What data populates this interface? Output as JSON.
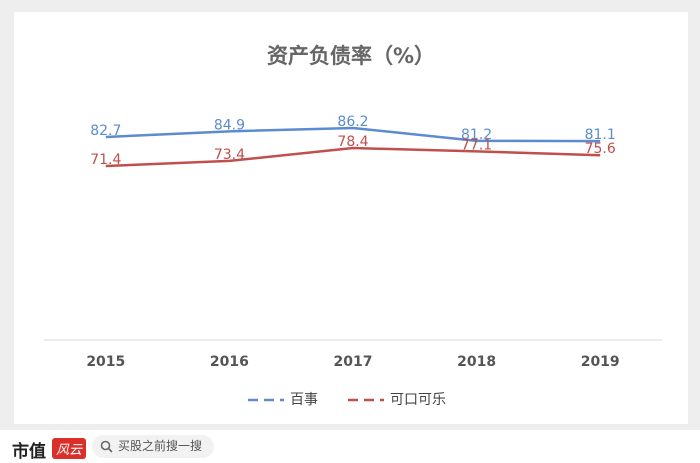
{
  "chart_data": {
    "type": "line",
    "title": "资产负债率（%）",
    "categories": [
      "2015",
      "2016",
      "2017",
      "2018",
      "2019"
    ],
    "series": [
      {
        "name": "百事",
        "color": "#5b8bd0",
        "values": [
          82.7,
          84.9,
          86.2,
          81.2,
          81.1
        ]
      },
      {
        "name": "可口可乐",
        "color": "#c0504d",
        "values": [
          71.4,
          73.4,
          78.4,
          77.1,
          75.6
        ]
      }
    ],
    "legend": "bottom"
  },
  "footer": {
    "brand": "市值",
    "badge": "风云",
    "search": "买股之前搜一搜"
  }
}
